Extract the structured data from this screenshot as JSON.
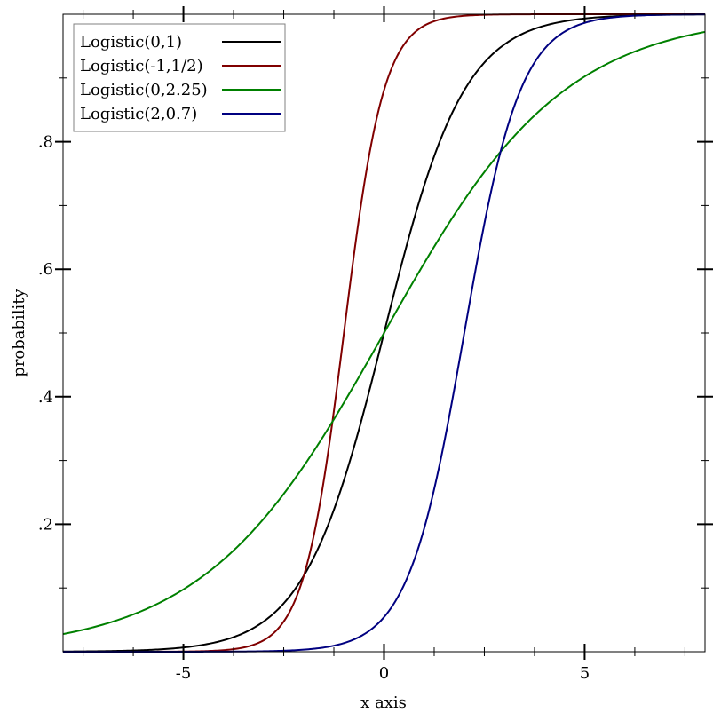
{
  "chart_data": {
    "type": "line",
    "title": "",
    "xlabel": "x axis",
    "ylabel": "probability",
    "xlim": [
      -8,
      8
    ],
    "ylim": [
      0,
      1
    ],
    "x_ticks": [
      {
        "value": -5,
        "label": "-5"
      },
      {
        "value": 0,
        "label": "0"
      },
      {
        "value": 5,
        "label": "5"
      }
    ],
    "y_ticks": [
      {
        "value": 0.2,
        "label": ".2"
      },
      {
        "value": 0.4,
        "label": ".4"
      },
      {
        "value": 0.6,
        "label": ".6"
      },
      {
        "value": 0.8,
        "label": ".8"
      }
    ],
    "x_minor_ticks": [
      -7.5,
      -6.25,
      -3.75,
      -2.5,
      -1.25,
      1.25,
      2.5,
      3.75,
      6.25,
      7.5
    ],
    "y_minor_ticks": [
      0.1,
      0.3,
      0.5,
      0.7,
      0.9
    ],
    "grid": false,
    "legend_position": "top-left",
    "series": [
      {
        "name": "Logistic(0,1)",
        "color": "#000000",
        "mean": 0,
        "scale": 1
      },
      {
        "name": "Logistic(-1,1/2)",
        "color": "#800000",
        "mean": -1,
        "scale": 0.5
      },
      {
        "name": "Logistic(0,2.25)",
        "color": "#008000",
        "mean": 0,
        "scale": 2.25
      },
      {
        "name": "Logistic(2,0.7)",
        "color": "#000080",
        "mean": 2,
        "scale": 0.7
      }
    ]
  }
}
